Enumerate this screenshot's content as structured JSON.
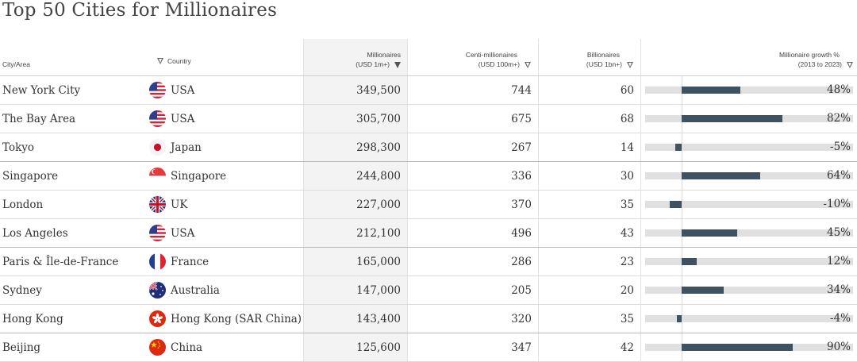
{
  "title": "Top 50 Cities for Millionaires",
  "headers": {
    "city": "City/Area",
    "country": "Country",
    "mill_l1": "Millionaires",
    "mill_l2": "(USD 1m+)",
    "centi_l1": "Centi-millionaires",
    "centi_l2": "(USD 100m+)",
    "bill_l1": "Billionaires",
    "bill_l2": "(USD 1bn+)",
    "growth_l1": "Millionaire growth %",
    "growth_l2": "(2013 to 2023)"
  },
  "colors": {
    "bar": "#3f5261",
    "track": "#e0e0e0",
    "sorted_column_bg": "#f3f3f3"
  },
  "rows": [
    {
      "city": "New York City",
      "flag": "us-flag",
      "country": "USA",
      "millionaires": "349,500",
      "centi": "744",
      "billionaires": "60",
      "growth": 48,
      "growth_label": "48%"
    },
    {
      "city": "The Bay Area",
      "flag": "us-flag",
      "country": "USA",
      "millionaires": "305,700",
      "centi": "675",
      "billionaires": "68",
      "growth": 82,
      "growth_label": "82%"
    },
    {
      "city": "Tokyo",
      "flag": "jp-flag",
      "country": "Japan",
      "millionaires": "298,300",
      "centi": "267",
      "billionaires": "14",
      "growth": -5,
      "growth_label": "-5%"
    },
    {
      "city": "Singapore",
      "flag": "sg-flag",
      "country": "Singapore",
      "millionaires": "244,800",
      "centi": "336",
      "billionaires": "30",
      "growth": 64,
      "growth_label": "64%"
    },
    {
      "city": "London",
      "flag": "uk-flag",
      "country": "UK",
      "millionaires": "227,000",
      "centi": "370",
      "billionaires": "35",
      "growth": -10,
      "growth_label": "-10%"
    },
    {
      "city": "Los Angeles",
      "flag": "us-flag",
      "country": "USA",
      "millionaires": "212,100",
      "centi": "496",
      "billionaires": "43",
      "growth": 45,
      "growth_label": "45%"
    },
    {
      "city": "Paris & Île-de-France",
      "flag": "fr-flag",
      "country": "France",
      "millionaires": "165,000",
      "centi": "286",
      "billionaires": "23",
      "growth": 12,
      "growth_label": "12%"
    },
    {
      "city": "Sydney",
      "flag": "au-flag",
      "country": "Australia",
      "millionaires": "147,000",
      "centi": "205",
      "billionaires": "20",
      "growth": 34,
      "growth_label": "34%"
    },
    {
      "city": "Hong Kong",
      "flag": "hk-flag",
      "country": "Hong Kong (SAR China)",
      "millionaires": "143,400",
      "centi": "320",
      "billionaires": "35",
      "growth": -4,
      "growth_label": "-4%"
    },
    {
      "city": "Beijing",
      "flag": "cn-flag",
      "country": "China",
      "millionaires": "125,600",
      "centi": "347",
      "billionaires": "42",
      "growth": 90,
      "growth_label": "90%"
    }
  ]
}
